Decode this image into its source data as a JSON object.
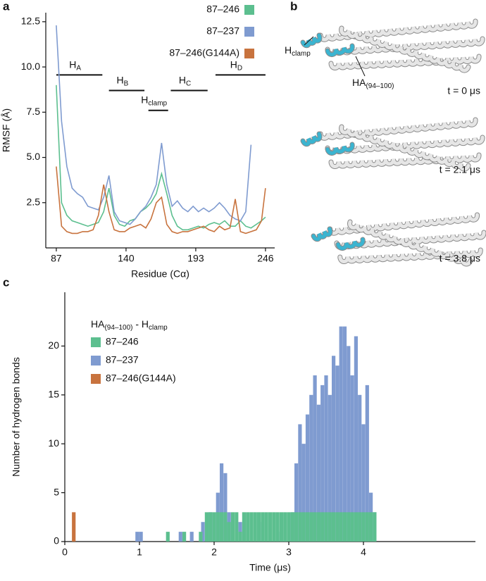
{
  "panel_letters": [
    "a",
    "b",
    "c"
  ],
  "structures": {
    "hclamp": {
      "main": "H",
      "sub": "clamp"
    },
    "ha": {
      "main": "HA",
      "sub": "(94–100)"
    },
    "times": [
      "t = 0 μs",
      "t = 2.1 μs",
      "t = 3.8 μs"
    ]
  },
  "chart_data": [
    {
      "type": "line",
      "xlabel": "Residue (Cα)",
      "ylabel": "RMSF (Å)",
      "x": [
        87,
        91,
        95,
        99,
        103,
        107,
        111,
        115,
        119,
        123,
        127,
        131,
        135,
        139,
        143,
        147,
        151,
        155,
        159,
        163,
        167,
        171,
        175,
        179,
        183,
        187,
        191,
        195,
        199,
        203,
        207,
        211,
        215,
        219,
        223,
        227,
        231,
        235,
        239,
        243,
        246
      ],
      "series": [
        {
          "name": "87–246",
          "color": "#5cbf8f",
          "values": [
            9,
            2.5,
            1.8,
            1.5,
            1.4,
            1.3,
            1.2,
            1.3,
            1.4,
            2.0,
            3.3,
            1.8,
            1.3,
            1.2,
            1.5,
            1.6,
            2.0,
            2.2,
            2.5,
            3.0,
            4.1,
            3.0,
            1.8,
            1.2,
            1.0,
            1.0,
            1.1,
            1.2,
            1.1,
            1.3,
            1.4,
            1.3,
            1.5,
            1.2,
            1.2,
            1.5,
            1.2,
            1.1,
            1.3,
            1.5,
            1.7
          ]
        },
        {
          "name": "87–237",
          "color": "#7f9bd0",
          "values": [
            12.3,
            7,
            4.5,
            3.3,
            3.0,
            2.8,
            2.3,
            2.2,
            2.1,
            2.8,
            4.0,
            2.0,
            1.5,
            1.4,
            1.3,
            1.6,
            2.0,
            2.3,
            2.8,
            3.5,
            5.8,
            3.5,
            2.3,
            2.6,
            2.2,
            2.0,
            2.3,
            2.0,
            2.2,
            2.0,
            2.2,
            2.5,
            2.2,
            1.8,
            1.6,
            1.5,
            2.0,
            5.7,
            null,
            null,
            null
          ]
        },
        {
          "name": "87–246(G144A)",
          "color": "#c8733e",
          "values": [
            4.5,
            1.2,
            0.9,
            0.8,
            0.8,
            0.9,
            0.9,
            1.0,
            1.8,
            3.5,
            2.0,
            1.0,
            0.9,
            0.9,
            1.1,
            1.2,
            1.3,
            1.1,
            1.6,
            2.5,
            2.8,
            1.3,
            0.9,
            0.8,
            0.9,
            0.9,
            1.0,
            1.1,
            1.2,
            1.0,
            0.9,
            1.2,
            1.0,
            1.1,
            2.7,
            0.9,
            0.8,
            0.9,
            1.0,
            1.5,
            3.3
          ]
        }
      ],
      "xlim": [
        79,
        253
      ],
      "xticks": [
        87,
        140,
        193,
        246
      ],
      "ylim": [
        0,
        13
      ],
      "yticks": [
        2.5,
        {
          "value": 5,
          "label": "5.0"
        },
        7.5,
        {
          "value": 10,
          "label": "10.0"
        },
        12.5
      ],
      "legend": "upper right",
      "helices": [
        {
          "main": "H",
          "sub": "A",
          "start": 87,
          "end": 122
        },
        {
          "main": "H",
          "sub": "B",
          "start": 127,
          "end": 154
        },
        {
          "main": "H",
          "sub": "clamp",
          "start": 157,
          "end": 172
        },
        {
          "main": "H",
          "sub": "C",
          "start": 174,
          "end": 202
        },
        {
          "main": "H",
          "sub": "D",
          "start": 208,
          "end": 246
        }
      ]
    },
    {
      "type": "bar",
      "xlabel": "Time (μs)",
      "ylabel": "Number of hydrogen bonds",
      "legend_title": {
        "main": "HA",
        "sub": "(94–100)",
        "mid": " - H",
        "sub2": "clamp"
      },
      "series": [
        {
          "name": "87–246",
          "color": "#5cbf8f",
          "x": [
            1.38,
            1.6,
            1.82,
            1.9,
            1.95,
            2.0,
            2.05,
            2.1,
            2.15,
            2.2,
            2.25,
            2.3,
            2.35,
            2.4,
            2.45,
            2.5,
            2.55,
            2.6,
            2.65,
            2.7,
            2.75,
            2.8,
            2.85,
            2.9,
            2.95,
            3.0,
            3.05,
            3.1,
            3.15,
            3.2,
            3.25,
            3.3,
            3.35,
            3.4,
            3.45,
            3.5,
            3.55,
            3.6,
            3.65,
            3.7,
            3.75,
            3.8,
            3.85,
            3.9,
            3.95,
            4.0,
            4.05,
            4.1,
            4.15
          ],
          "values": [
            1,
            1,
            1,
            3,
            3,
            3,
            3,
            3,
            3,
            2,
            3,
            3,
            1,
            3,
            3,
            3,
            3,
            3,
            3,
            3,
            3,
            3,
            3,
            3,
            3,
            3,
            3,
            3,
            3,
            3,
            3,
            3,
            3,
            3,
            3,
            3,
            3,
            3,
            3,
            3,
            3,
            3,
            3,
            3,
            3,
            3,
            3,
            3,
            3
          ]
        },
        {
          "name": "87–237",
          "color": "#7f9bd0",
          "x": [
            0.97,
            1.02,
            1.55,
            1.7,
            1.85,
            1.95,
            2.05,
            2.1,
            2.15,
            2.2,
            2.35,
            2.6,
            2.9,
            3.05,
            3.1,
            3.15,
            3.2,
            3.25,
            3.3,
            3.35,
            3.4,
            3.45,
            3.5,
            3.55,
            3.6,
            3.65,
            3.7,
            3.75,
            3.8,
            3.85,
            3.9,
            3.95,
            4.0,
            4.05,
            4.1,
            4.15
          ],
          "values": [
            1,
            1,
            1,
            1,
            2,
            3,
            5,
            8,
            7,
            3,
            2,
            2,
            1,
            3,
            8,
            12,
            10,
            13,
            15,
            17,
            14,
            16,
            17,
            15,
            19,
            18,
            22,
            22,
            20,
            17,
            21,
            15,
            12,
            16,
            5,
            3
          ]
        },
        {
          "name": "87–246(G144A)",
          "color": "#c8733e",
          "x": [
            0.12
          ],
          "values": [
            3
          ]
        }
      ],
      "xlim": [
        0,
        5.5
      ],
      "xticks": [
        0,
        1,
        2,
        3,
        4
      ],
      "ylim": [
        0,
        25.5
      ],
      "yticks": [
        0,
        5,
        10,
        15,
        20
      ],
      "legend": "upper left"
    }
  ]
}
